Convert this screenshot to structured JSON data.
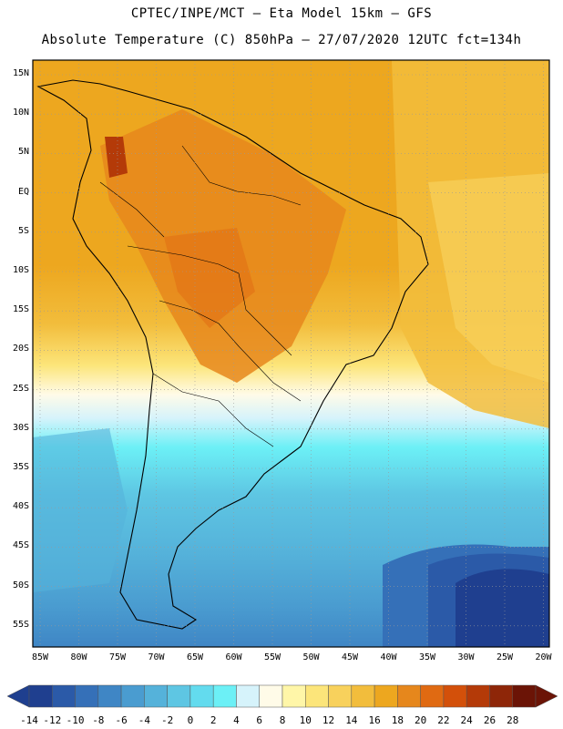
{
  "header": {
    "line1": "CPTEC/INPE/MCT –  Eta Model 15km – GFS",
    "line2": "Absolute Temperature (C) 850hPa – 27/07/2020 12UTC fct=134h"
  },
  "axes": {
    "lat_labels": [
      "15N",
      "10N",
      "5N",
      "EQ",
      "5S",
      "10S",
      "15S",
      "20S",
      "25S",
      "30S",
      "35S",
      "40S",
      "45S",
      "50S",
      "55S"
    ],
    "lon_labels": [
      "85W",
      "80W",
      "75W",
      "70W",
      "65W",
      "60W",
      "55W",
      "50W",
      "45W",
      "40W",
      "35W",
      "30W",
      "25W",
      "20W"
    ]
  },
  "colorbar": {
    "labels": [
      "-14",
      "-12",
      "-10",
      "-8",
      "-6",
      "-4",
      "-2",
      "0",
      "2",
      "4",
      "6",
      "8",
      "10",
      "12",
      "14",
      "16",
      "18",
      "20",
      "22",
      "24",
      "26",
      "28"
    ],
    "colors": [
      "#1f3f8f",
      "#2b5aa8",
      "#3570b8",
      "#3f86c5",
      "#4a9cd0",
      "#55b2da",
      "#5ec6e3",
      "#63dbee",
      "#6cf0f6",
      "#d6f3fb",
      "#fffbe8",
      "#fff6a8",
      "#fce57a",
      "#f8d15c",
      "#f2bd3c",
      "#eda71f",
      "#e6871c",
      "#e06a12",
      "#d3500a",
      "#b43a08",
      "#8e2608",
      "#6b1406"
    ]
  }
}
